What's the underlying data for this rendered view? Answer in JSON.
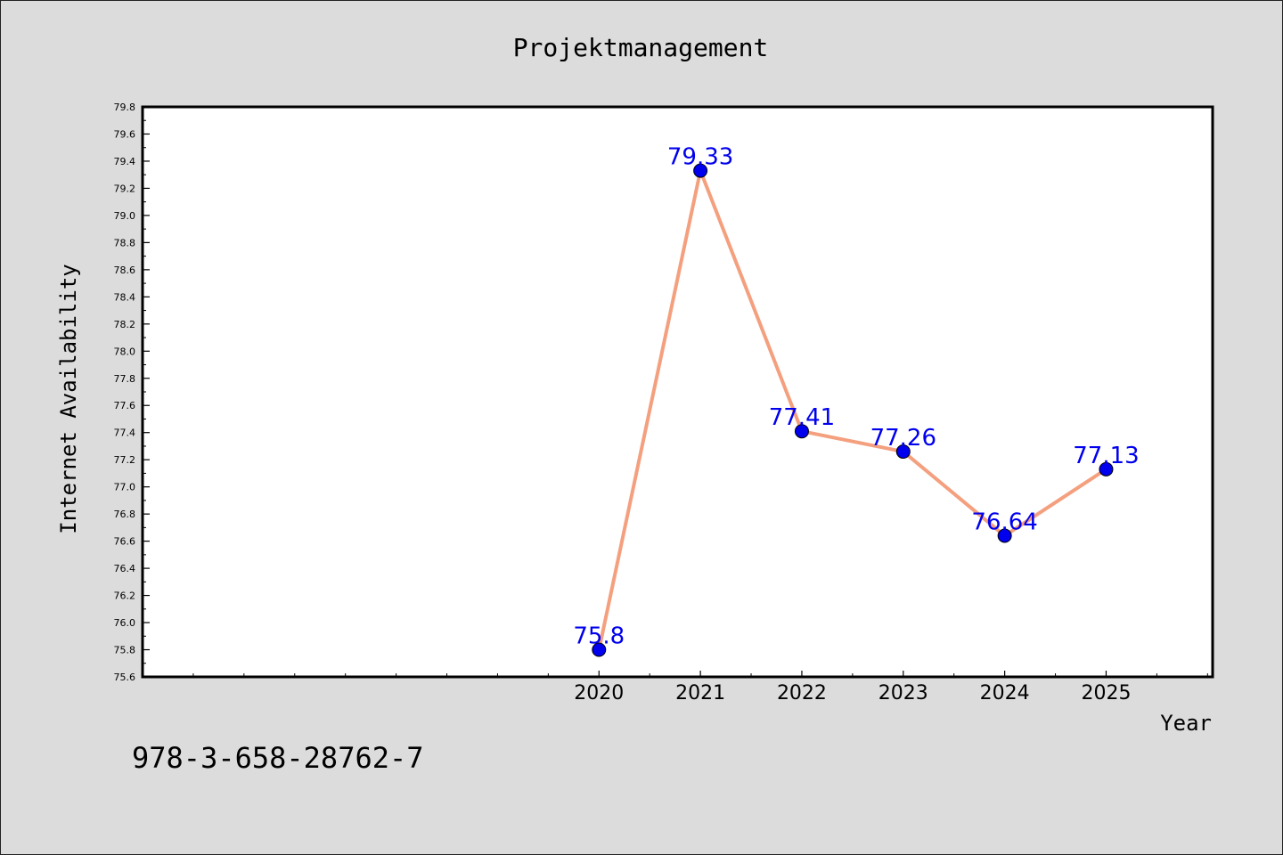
{
  "chart_data": {
    "type": "line",
    "title": "Projektmanagement",
    "xlabel": "Year",
    "ylabel": "Internet Availability",
    "x": [
      2020,
      2021,
      2022,
      2023,
      2024,
      2025
    ],
    "series": [
      {
        "values": [
          75.8,
          79.33,
          77.41,
          77.26,
          76.64,
          77.13
        ],
        "labels": [
          "75.8",
          "79.33",
          "77.41",
          "77.26",
          "76.64",
          "77.13"
        ]
      }
    ],
    "x_tick_labels": [
      "2020",
      "2021",
      "2022",
      "2023",
      "2024",
      "2025"
    ],
    "xlim": [
      2015.5,
      2026.05
    ],
    "ylim": [
      75.6,
      79.8
    ],
    "y_ticks": [
      "75.6",
      "75.8",
      "76.0",
      "76.2",
      "76.4",
      "76.6",
      "76.8",
      "77.0",
      "77.2",
      "77.4",
      "77.6",
      "77.8",
      "78.0",
      "78.2",
      "78.4",
      "78.6",
      "78.8",
      "79.0",
      "79.2",
      "79.4",
      "79.6",
      "79.8"
    ],
    "grid": false,
    "legend": "none",
    "line_color": "#f4a07f",
    "marker_color": "#0000ee",
    "label_color": "#0000ee"
  },
  "footer": {
    "identifier": "978-3-658-28762-7"
  }
}
